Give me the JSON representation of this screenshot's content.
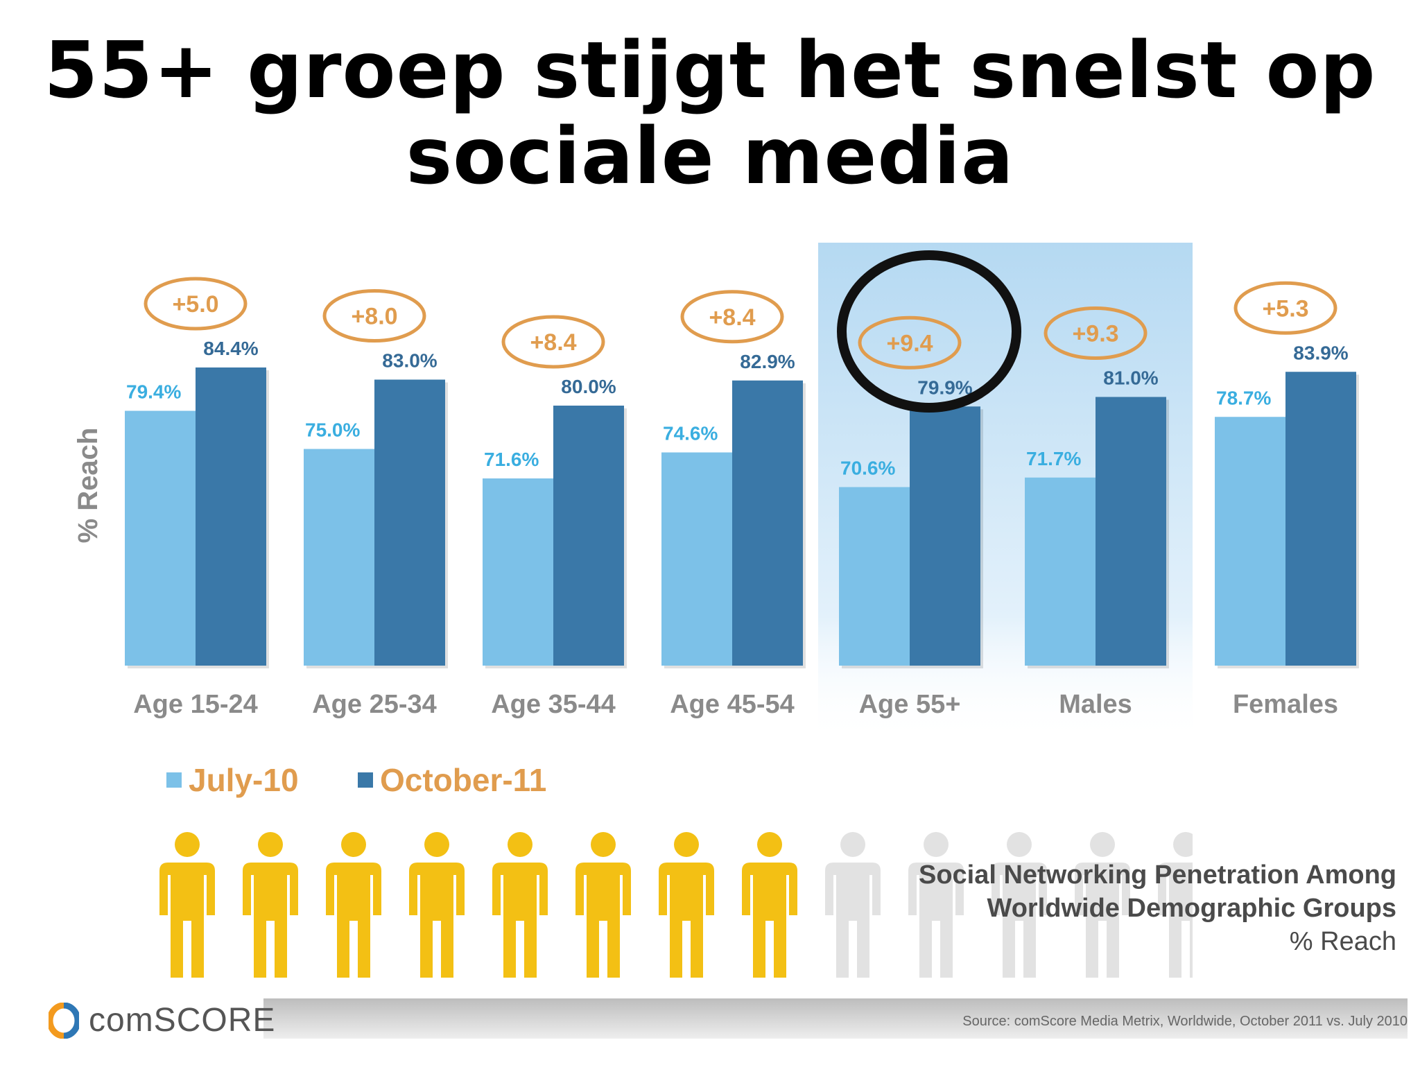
{
  "title": {
    "line1": "55+ groep stijgt het snelst op",
    "line2": "sociale media"
  },
  "colors": {
    "july": "#7cc1e8",
    "october": "#3a78a8",
    "accent": "#e09c4e",
    "highlight": "#cfe6f6",
    "figure_active": "#f3c014",
    "figure_inactive": "#e2e2e2"
  },
  "chart_data": {
    "type": "bar",
    "ylabel": "% Reach",
    "categories": [
      "Age 15-24",
      "Age 25-34",
      "Age 35-44",
      "Age 45-54",
      "Age 55+",
      "Males",
      "Females"
    ],
    "series": [
      {
        "name": "July-10",
        "values": [
          79.4,
          75.0,
          71.6,
          74.6,
          70.6,
          71.7,
          78.7
        ],
        "labels": [
          "79.4%",
          "75.0%",
          "71.6%",
          "74.6%",
          "70.6%",
          "71.7%",
          "78.7%"
        ]
      },
      {
        "name": "October-11",
        "values": [
          84.4,
          83.0,
          80.0,
          82.9,
          79.9,
          81.0,
          83.9
        ],
        "labels": [
          "84.4%",
          "83.0%",
          "80.0%",
          "82.9%",
          "79.9%",
          "81.0%",
          "83.9%"
        ]
      }
    ],
    "changes": [
      "+5.0",
      "+8.0",
      "+8.4",
      "+8.4",
      "+9.4",
      "+9.3",
      "+5.3"
    ],
    "highlight_category": "Age 55+",
    "circled_category": "Age 55+",
    "ylim": [
      50,
      90
    ],
    "legend": "bottom-left",
    "grid": false
  },
  "legend": {
    "july_label": "July-10",
    "october_label": "October-11"
  },
  "people": {
    "active": 8,
    "total": 15
  },
  "caption": {
    "line1": "Social Networking Penetration Among",
    "line2": "Worldwide Demographic Groups",
    "line3": "% Reach"
  },
  "logo": {
    "text": "comSCORE"
  },
  "source": "Source: comScore Media Metrix, Worldwide, October 2011 vs. July 2010"
}
